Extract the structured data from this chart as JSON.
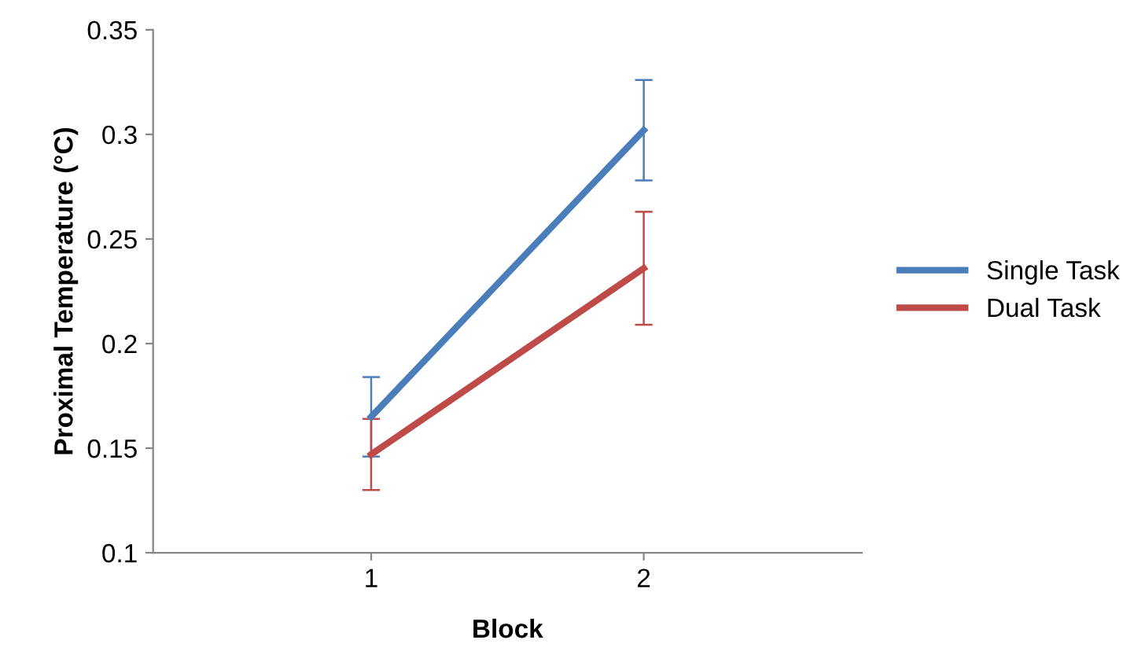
{
  "chart_data": {
    "type": "line",
    "xlabel": "Block",
    "ylabel": "Proximal Temperature (°C)",
    "categories": [
      "1",
      "2"
    ],
    "series": [
      {
        "name": "Single Task",
        "color": "#4a7ebb",
        "values": [
          0.165,
          0.302
        ],
        "errors": [
          0.019,
          0.024
        ]
      },
      {
        "name": "Dual Task",
        "color": "#be4b48",
        "values": [
          0.147,
          0.236
        ],
        "errors": [
          0.017,
          0.027
        ]
      }
    ],
    "ylim": [
      0.1,
      0.35
    ],
    "yticks": [
      0.1,
      0.15,
      0.2,
      0.25,
      0.3,
      0.35
    ],
    "grid": false,
    "legend": "right",
    "marker": "none",
    "line_style": "solid"
  }
}
